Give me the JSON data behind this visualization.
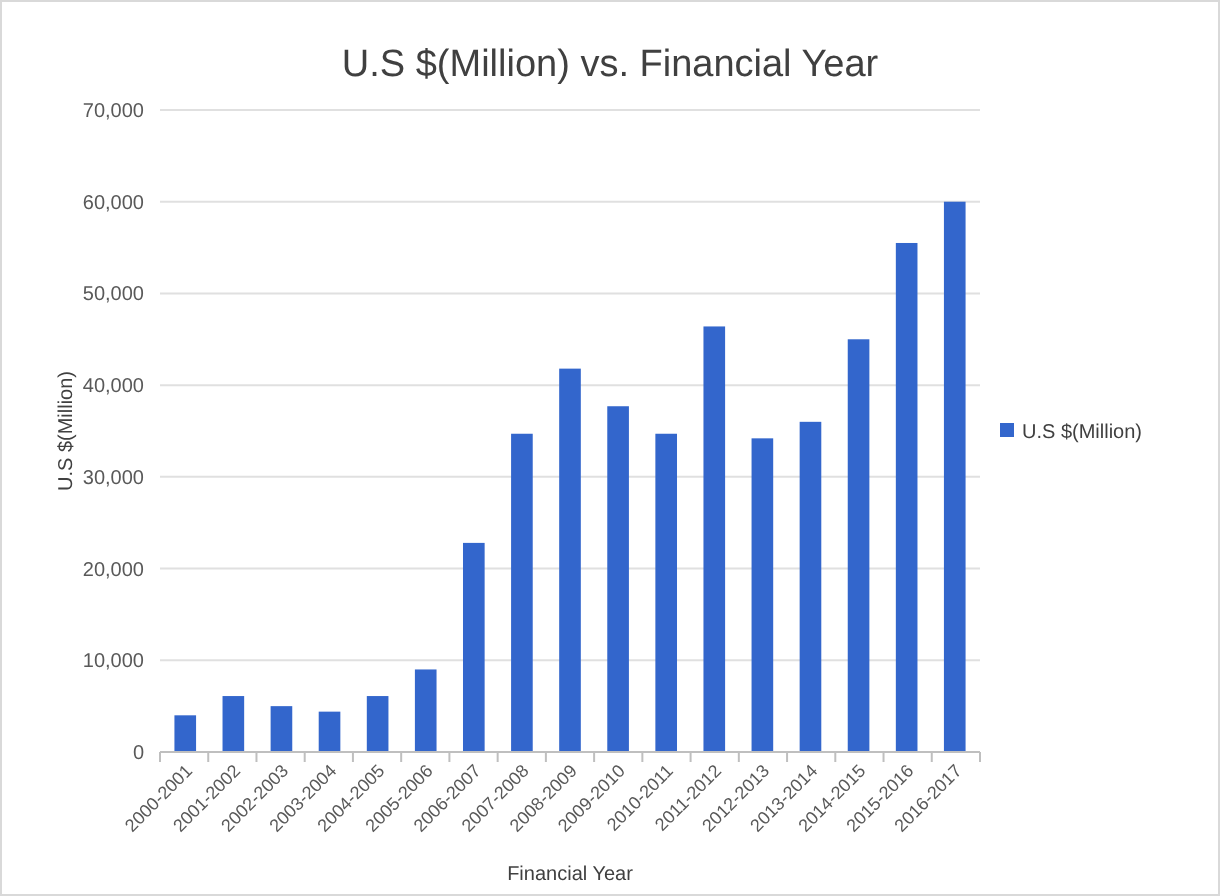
{
  "chart_data": {
    "type": "bar",
    "title": "U.S $(Million) vs. Financial Year",
    "xlabel": "Financial Year",
    "ylabel": "U.S $(Million)",
    "categories": [
      "2000-2001",
      "2001-2002",
      "2002-2003",
      "2003-2004",
      "2004-2005",
      "2005-2006",
      "2006-2007",
      "2007-2008",
      "2008-2009",
      "2009-2010",
      "2010-2011",
      "2011-2012",
      "2012-2013",
      "2013-2014",
      "2014-2015",
      "2015-2016",
      "2016-2017"
    ],
    "series": [
      {
        "name": "U.S $(Million)",
        "color": "#3366cc",
        "values": [
          4000,
          6100,
          5000,
          4400,
          6100,
          9000,
          22800,
          34700,
          41800,
          37700,
          34700,
          46400,
          34200,
          36000,
          45000,
          55500,
          60000
        ]
      }
    ],
    "ylim": [
      0,
      70000
    ],
    "yticks": [
      {
        "value": 0,
        "label": "0"
      },
      {
        "value": 10000,
        "label": "10,000"
      },
      {
        "value": 20000,
        "label": "20,000"
      },
      {
        "value": 30000,
        "label": "30,000"
      },
      {
        "value": 40000,
        "label": "40,000"
      },
      {
        "value": 50000,
        "label": "50,000"
      },
      {
        "value": 60000,
        "label": "60,000"
      },
      {
        "value": 70000,
        "label": "70,000"
      }
    ],
    "grid": "y",
    "legend": "right"
  }
}
